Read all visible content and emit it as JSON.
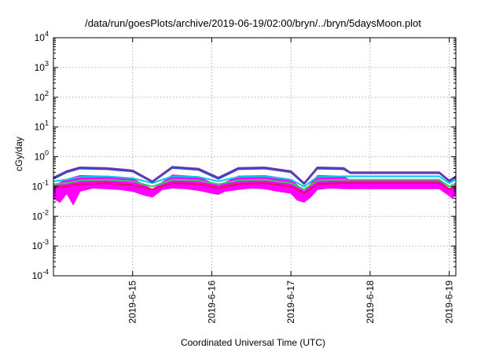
{
  "chart_data": {
    "type": "area",
    "title": "/data/run/goesPlots/archive/2019-06-19/02:00/bryn/../bryn/5daysMoon.plot",
    "xlabel": "Coordinated Universal Time (UTC)",
    "ylabel": "cGy/day",
    "y_scale": "log",
    "ylim": [
      0.0001,
      10000
    ],
    "xlim": [
      "2019-06-14 00:00",
      "2019-06-19 02:00"
    ],
    "y_ticks": [
      {
        "base": "10",
        "exp": "-4",
        "value": 0.0001
      },
      {
        "base": "10",
        "exp": "-3",
        "value": 0.001
      },
      {
        "base": "10",
        "exp": "-2",
        "value": 0.01
      },
      {
        "base": "10",
        "exp": "-1",
        "value": 0.1
      },
      {
        "base": "10",
        "exp": "0",
        "value": 1
      },
      {
        "base": "10",
        "exp": "1",
        "value": 10
      },
      {
        "base": "10",
        "exp": "2",
        "value": 100
      },
      {
        "base": "10",
        "exp": "3",
        "value": 1000
      },
      {
        "base": "10",
        "exp": "4",
        "value": 10000
      }
    ],
    "x_ticks": [
      "2019-6-15",
      "2019-6-16",
      "2019-6-17",
      "2019-6-18",
      "2019-6-19"
    ],
    "grid": true,
    "colors": {
      "magenta_fill": "#ff00ff",
      "crimson": "#e0115f",
      "green": "#33cc66",
      "cyan": "#00c8e8",
      "blue": "#1a56db",
      "purple": "#7a2ea6"
    },
    "gap": {
      "start": "2019-06-17 18:00",
      "end": "2019-06-18 21:00"
    },
    "series": [
      {
        "color": "magenta_fill",
        "x": [
          "2019-06-14 00:00",
          "2019-06-14 02:00",
          "2019-06-14 04:00",
          "2019-06-14 06:00",
          "2019-06-14 08:00",
          "2019-06-14 12:00",
          "2019-06-14 16:00",
          "2019-06-14 20:00",
          "2019-06-15 00:00",
          "2019-06-15 04:00",
          "2019-06-15 06:00",
          "2019-06-15 09:00",
          "2019-06-15 12:00",
          "2019-06-15 16:00",
          "2019-06-15 20:00",
          "2019-06-16 00:00",
          "2019-06-16 02:00",
          "2019-06-16 04:00",
          "2019-06-16 08:00",
          "2019-06-16 12:00",
          "2019-06-16 16:00",
          "2019-06-16 20:00",
          "2019-06-17 00:00",
          "2019-06-17 02:00",
          "2019-06-17 04:00",
          "2019-06-17 06:00",
          "2019-06-17 08:00",
          "2019-06-17 12:00",
          "2019-06-17 16:00",
          "2019-06-17 18:00",
          "2019-06-18 21:00",
          "2019-06-19 00:00",
          "2019-06-19 01:00",
          "2019-06-19 02:00"
        ],
        "values": [
          0.04,
          0.03,
          0.06,
          0.025,
          0.07,
          0.09,
          0.085,
          0.08,
          0.07,
          0.05,
          0.045,
          0.08,
          0.09,
          0.085,
          0.075,
          0.06,
          0.055,
          0.07,
          0.08,
          0.09,
          0.085,
          0.07,
          0.06,
          0.035,
          0.03,
          0.045,
          0.08,
          0.09,
          0.085,
          0.085,
          0.085,
          0.05,
          0.04,
          0.06
        ]
      },
      {
        "color": "crimson",
        "x": [
          "2019-06-14 00:00",
          "2019-06-14 04:00",
          "2019-06-14 08:00",
          "2019-06-14 16:00",
          "2019-06-15 00:00",
          "2019-06-15 06:00",
          "2019-06-15 12:00",
          "2019-06-15 20:00",
          "2019-06-16 02:00",
          "2019-06-16 08:00",
          "2019-06-16 16:00",
          "2019-06-17 00:00",
          "2019-06-17 04:00",
          "2019-06-17 08:00",
          "2019-06-17 16:00",
          "2019-06-17 18:00",
          "2019-06-18 21:00",
          "2019-06-19 00:00",
          "2019-06-19 02:00"
        ],
        "values": [
          0.09,
          0.1,
          0.12,
          0.13,
          0.11,
          0.08,
          0.13,
          0.12,
          0.09,
          0.12,
          0.13,
          0.1,
          0.06,
          0.12,
          0.13,
          0.13,
          0.13,
          0.08,
          0.1
        ]
      },
      {
        "color": "green",
        "x": [
          "2019-06-14 00:00",
          "2019-06-14 04:00",
          "2019-06-14 08:00",
          "2019-06-14 16:00",
          "2019-06-15 00:00",
          "2019-06-15 06:00",
          "2019-06-15 12:00",
          "2019-06-15 20:00",
          "2019-06-16 02:00",
          "2019-06-16 08:00",
          "2019-06-16 16:00",
          "2019-06-17 00:00",
          "2019-06-17 04:00",
          "2019-06-17 08:00",
          "2019-06-17 16:00",
          "2019-06-17 18:00",
          "2019-06-18 21:00",
          "2019-06-19 00:00",
          "2019-06-19 02:00"
        ],
        "values": [
          0.12,
          0.13,
          0.16,
          0.17,
          0.15,
          0.1,
          0.17,
          0.16,
          0.12,
          0.16,
          0.17,
          0.13,
          0.08,
          0.16,
          0.17,
          0.17,
          0.17,
          0.1,
          0.13
        ]
      },
      {
        "color": "cyan",
        "x": [
          "2019-06-14 00:00",
          "2019-06-14 04:00",
          "2019-06-14 08:00",
          "2019-06-14 16:00",
          "2019-06-15 00:00",
          "2019-06-15 06:00",
          "2019-06-15 12:00",
          "2019-06-15 20:00",
          "2019-06-16 02:00",
          "2019-06-16 08:00",
          "2019-06-16 16:00",
          "2019-06-17 00:00",
          "2019-06-17 04:00",
          "2019-06-17 08:00",
          "2019-06-17 16:00",
          "2019-06-17 18:00",
          "2019-06-18 21:00",
          "2019-06-19 00:00",
          "2019-06-19 02:00"
        ],
        "values": [
          0.15,
          0.17,
          0.21,
          0.22,
          0.19,
          0.13,
          0.22,
          0.21,
          0.15,
          0.21,
          0.22,
          0.17,
          0.1,
          0.21,
          0.22,
          0.22,
          0.22,
          0.13,
          0.17
        ]
      },
      {
        "color": "blue",
        "x": [
          "2019-06-14 00:00",
          "2019-06-14 04:00",
          "2019-06-14 08:00",
          "2019-06-14 16:00",
          "2019-06-15 00:00",
          "2019-06-15 06:00",
          "2019-06-15 12:00",
          "2019-06-15 20:00",
          "2019-06-16 02:00",
          "2019-06-16 08:00",
          "2019-06-16 16:00",
          "2019-06-17 00:00",
          "2019-06-17 04:00",
          "2019-06-17 08:00",
          "2019-06-17 16:00",
          "2019-06-17 18:00",
          "2019-06-18 21:00",
          "2019-06-19 00:00",
          "2019-06-19 02:00"
        ],
        "values": [
          0.18,
          0.3,
          0.4,
          0.38,
          0.32,
          0.14,
          0.42,
          0.36,
          0.18,
          0.38,
          0.4,
          0.3,
          0.12,
          0.4,
          0.38,
          0.28,
          0.28,
          0.15,
          0.2
        ]
      },
      {
        "color": "purple",
        "x": [
          "2019-06-14 00:00",
          "2019-06-14 04:00",
          "2019-06-14 08:00",
          "2019-06-14 16:00",
          "2019-06-15 00:00",
          "2019-06-15 06:00",
          "2019-06-15 12:00",
          "2019-06-15 20:00",
          "2019-06-16 02:00",
          "2019-06-16 08:00",
          "2019-06-16 16:00",
          "2019-06-17 00:00",
          "2019-06-17 04:00",
          "2019-06-17 08:00",
          "2019-06-17 16:00",
          "2019-06-17 18:00",
          "2019-06-18 21:00",
          "2019-06-19 00:00",
          "2019-06-19 02:00"
        ],
        "values": [
          0.2,
          0.33,
          0.44,
          0.42,
          0.35,
          0.15,
          0.46,
          0.4,
          0.2,
          0.42,
          0.44,
          0.33,
          0.13,
          0.44,
          0.42,
          0.3,
          0.3,
          0.16,
          0.22
        ]
      }
    ]
  }
}
